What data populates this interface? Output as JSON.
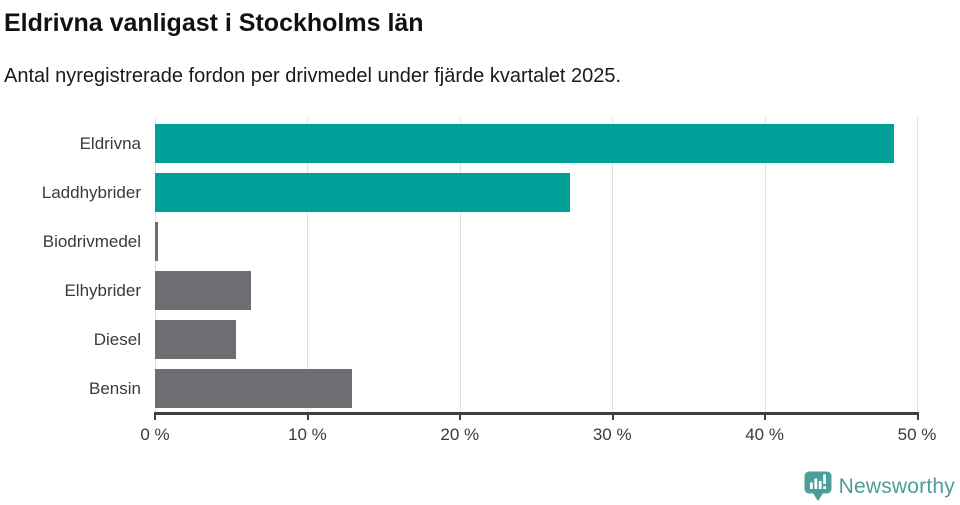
{
  "title": "Eldrivna vanligast i Stockholms län",
  "subtitle": "Antal nyregistrerade fordon per drivmedel under fjärde kvartalet 2025.",
  "chart_data": {
    "type": "bar",
    "orientation": "horizontal",
    "title": "Eldrivna vanligast i Stockholms län",
    "subtitle": "Antal nyregistrerade fordon per drivmedel under fjärde kvartalet 2025.",
    "categories": [
      "Eldrivna",
      "Laddhybrider",
      "Biodrivmedel",
      "Elhybrider",
      "Diesel",
      "Bensin"
    ],
    "values": [
      48.5,
      27.2,
      0.2,
      6.3,
      5.3,
      12.9
    ],
    "unit": "%",
    "xlim": [
      0,
      50
    ],
    "x_tick_values": [
      0,
      10,
      20,
      30,
      40,
      50
    ],
    "x_ticks": [
      "0 %",
      "10 %",
      "20 %",
      "30 %",
      "40 %",
      "50 %"
    ],
    "bar_colors": [
      "#00a099",
      "#00a099",
      "#6e6e72",
      "#6e6e72",
      "#6e6e72",
      "#6e6e72"
    ],
    "grid": "vertical gridlines at every 10 %",
    "legend_position": "none"
  },
  "branding": {
    "logo_text": "Newsworthy",
    "logo_icon": "newsworthy-bar-chart-speech-bubble-icon"
  },
  "colors": {
    "accent_teal": "#00a099",
    "bar_gray": "#6e6e72",
    "logo_teal": "#4b9e99",
    "axis": "#3f3f3f",
    "gridline": "#e2e2e2",
    "title_text": "#111111",
    "label_text": "#3a3a3a"
  }
}
